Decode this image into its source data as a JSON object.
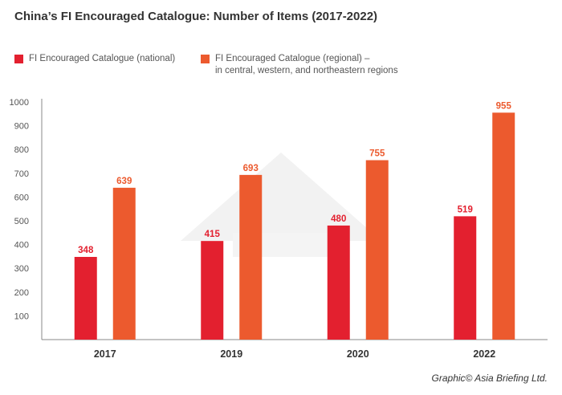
{
  "title": "China’s FI Encouraged Catalogue: Number of Items (2017-2022)",
  "credit": "Graphic© Asia Briefing Ltd.",
  "colors": {
    "national": "#e3202f",
    "regional": "#ec5a2e",
    "axis": "#888888",
    "grid": "#dddddd",
    "tick_text": "#555555"
  },
  "chart_data": {
    "type": "bar",
    "categories": [
      "2017",
      "2019",
      "2020",
      "2022"
    ],
    "series": [
      {
        "name": "FI Encouraged Catalogue (national)",
        "values": [
          348,
          415,
          480,
          519
        ]
      },
      {
        "name": "FI Encouraged Catalogue (regional) –",
        "name_line2": "in central, western, and northeastern regions",
        "values": [
          639,
          693,
          755,
          955
        ]
      }
    ],
    "yticks": [
      "100",
      "200",
      "300",
      "400",
      "500",
      "600",
      "700",
      "800",
      "900",
      "1000"
    ],
    "ylim": [
      0,
      1000
    ],
    "xlabel": "",
    "ylabel": "",
    "grid": false,
    "legend_position": "top-left"
  }
}
